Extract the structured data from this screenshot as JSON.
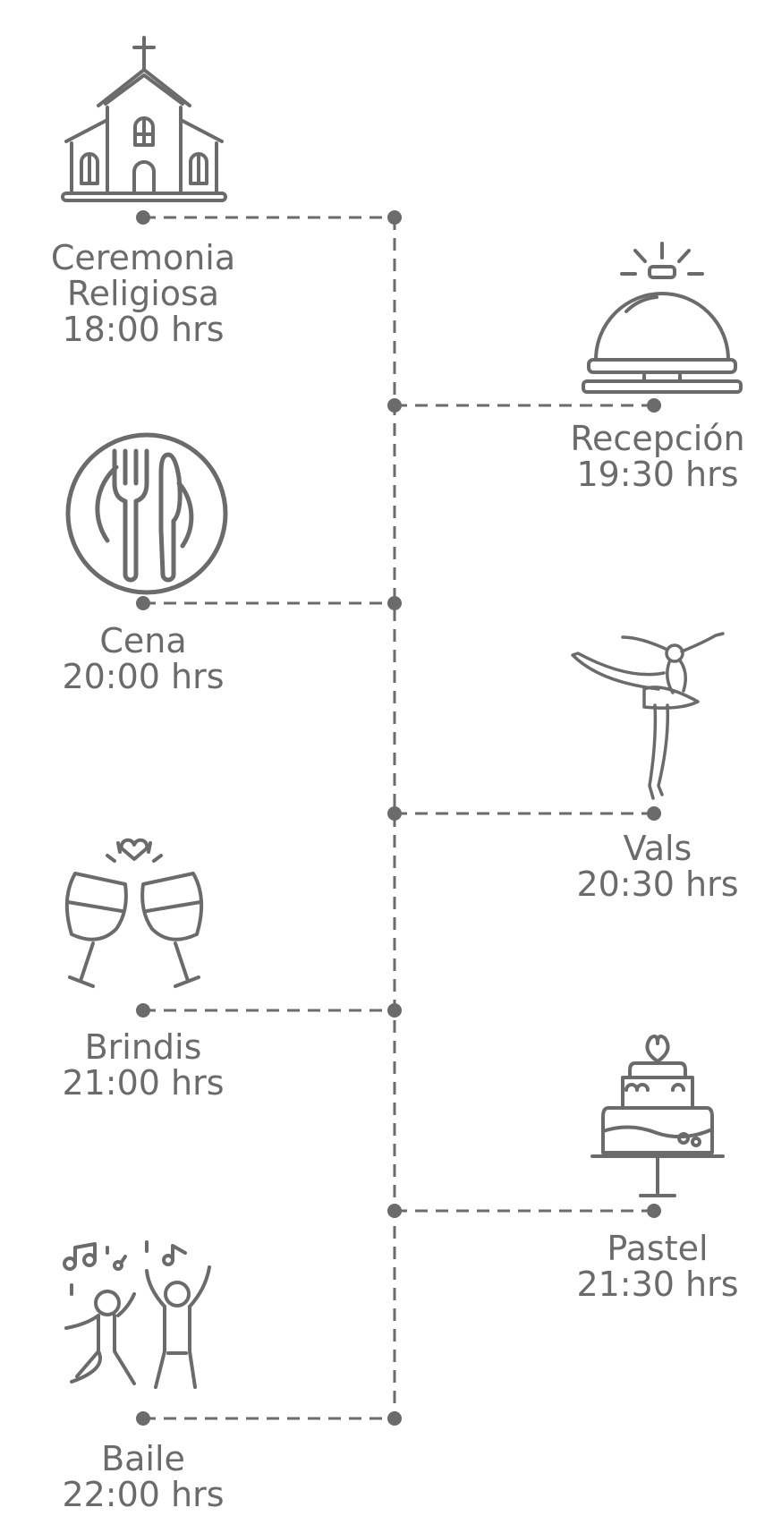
{
  "colors": {
    "ink": "#6b6b6b",
    "line": "#6b6b6b",
    "background": "#ffffff"
  },
  "events": [
    {
      "id": "ceremonia",
      "side": "left",
      "icon": "church-icon",
      "lines": [
        "Ceremonia",
        "Religiosa",
        "18:00 hrs"
      ]
    },
    {
      "id": "recepcion",
      "side": "right",
      "icon": "service-bell-icon",
      "lines": [
        "Recepción",
        "19:30 hrs"
      ]
    },
    {
      "id": "cena",
      "side": "left",
      "icon": "plate-fork-knife-icon",
      "lines": [
        "Cena",
        "20:00 hrs"
      ]
    },
    {
      "id": "vals",
      "side": "right",
      "icon": "ballerina-icon",
      "lines": [
        "Vals",
        "20:30 hrs"
      ]
    },
    {
      "id": "brindis",
      "side": "left",
      "icon": "toast-glasses-icon",
      "lines": [
        "Brindis",
        "21:00 hrs"
      ]
    },
    {
      "id": "pastel",
      "side": "right",
      "icon": "wedding-cake-icon",
      "lines": [
        "Pastel",
        "21:30 hrs"
      ]
    },
    {
      "id": "baile",
      "side": "left",
      "icon": "dancing-couple-icon",
      "lines": [
        "Baile",
        "22:00 hrs"
      ]
    }
  ]
}
